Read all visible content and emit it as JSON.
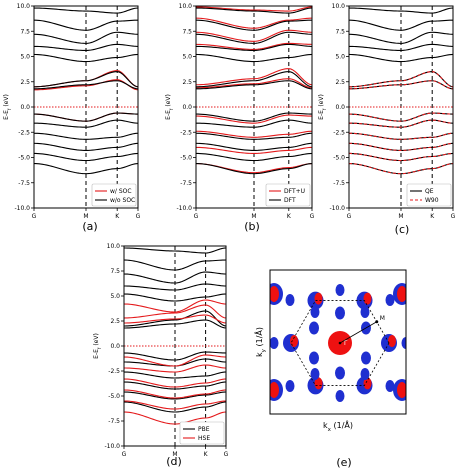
{
  "figure_labels": [
    "(a)",
    "(b)",
    "(c)",
    "(d)",
    "(e)"
  ],
  "colors": {
    "line_primary": "#e41a1c",
    "line_secondary": "#000000",
    "fermi": "#e41a1c",
    "pocket_red": "#ee1111",
    "pocket_blue": "#1f2fd0"
  },
  "chart_data": [
    {
      "id": "a",
      "type": "line",
      "ylabel": "E-E_f (eV)",
      "ylim": [
        -10.0,
        10.0
      ],
      "yticks": [
        "10.0",
        "7.5",
        "5.0",
        "2.5",
        "0.0",
        "-2.5",
        "-5.0",
        "-7.5",
        "-10.0"
      ],
      "xticks": [
        "G",
        "M",
        "K",
        "G"
      ],
      "xtick_pos": [
        0,
        0.5,
        0.8,
        1.0
      ],
      "fermi_level": 0.0,
      "legend": {
        "position": "lower-right",
        "entries": [
          {
            "name": "w/ SOC",
            "color": "#e41a1c",
            "style": "solid"
          },
          {
            "name": "w/o SOC",
            "color": "#000000",
            "style": "solid"
          }
        ]
      },
      "series": [
        {
          "name": "w/ SOC",
          "color": "#e41a1c",
          "style": "solid",
          "band_energies_at_G_M_K_G": [
            [
              2.0,
              2.6,
              3.6,
              2.0
            ],
            [
              1.7,
              2.1,
              2.7,
              1.7
            ],
            [
              -0.7,
              -1.4,
              -0.6,
              -0.7
            ]
          ]
        },
        {
          "name": "w/o SOC",
          "color": "#000000",
          "style": "solid",
          "band_energies_at_G_M_K_G": [
            [
              9.8,
              9.5,
              9.3,
              9.8
            ],
            [
              8.6,
              7.6,
              8.5,
              8.6
            ],
            [
              7.2,
              6.3,
              7.4,
              7.2
            ],
            [
              6.0,
              5.6,
              6.2,
              6.0
            ],
            [
              5.2,
              4.5,
              4.9,
              5.2
            ],
            [
              2.0,
              2.6,
              3.5,
              2.0
            ],
            [
              1.8,
              2.2,
              2.6,
              1.8
            ],
            [
              -0.7,
              -1.4,
              -0.6,
              -0.7
            ],
            [
              -1.6,
              -2.0,
              -1.3,
              -1.6
            ],
            [
              -2.6,
              -3.2,
              -3.0,
              -2.6
            ],
            [
              -3.6,
              -4.3,
              -4.0,
              -3.6
            ],
            [
              -4.6,
              -5.3,
              -4.9,
              -4.6
            ],
            [
              -5.6,
              -6.6,
              -6.1,
              -5.6
            ]
          ]
        }
      ]
    },
    {
      "id": "b",
      "type": "line",
      "ylabel": "E-E_f (eV)",
      "ylim": [
        -10.0,
        10.0
      ],
      "yticks": [
        "10.0",
        "7.5",
        "5.0",
        "2.5",
        "0.0",
        "-2.5",
        "-5.0",
        "-7.5",
        "-10.0"
      ],
      "xticks": [
        "G",
        "M",
        "K",
        "G"
      ],
      "xtick_pos": [
        0,
        0.5,
        0.8,
        1.0
      ],
      "fermi_level": 0.0,
      "legend": {
        "position": "lower-right",
        "entries": [
          {
            "name": "DFT+U",
            "color": "#e41a1c",
            "style": "solid"
          },
          {
            "name": "DFT",
            "color": "#000000",
            "style": "solid"
          }
        ]
      },
      "series": [
        {
          "name": "DFT+U",
          "color": "#e41a1c",
          "style": "solid",
          "band_energies_at_G_M_K_G": [
            [
              9.9,
              9.6,
              9.5,
              9.9
            ],
            [
              8.8,
              7.8,
              8.6,
              8.8
            ],
            [
              7.4,
              6.5,
              7.6,
              7.4
            ],
            [
              6.2,
              5.7,
              6.3,
              6.2
            ],
            [
              2.2,
              2.8,
              3.8,
              2.2
            ],
            [
              1.9,
              2.3,
              2.8,
              1.9
            ],
            [
              -0.9,
              -1.6,
              -0.8,
              -0.9
            ],
            [
              -2.4,
              -3.0,
              -2.7,
              -2.4
            ],
            [
              -4.0,
              -4.6,
              -4.3,
              -4.0
            ],
            [
              -5.6,
              -6.5,
              -6.0,
              -5.6
            ]
          ]
        },
        {
          "name": "DFT",
          "color": "#000000",
          "style": "solid",
          "band_energies_at_G_M_K_G": [
            [
              9.8,
              9.5,
              9.3,
              9.8
            ],
            [
              8.6,
              7.6,
              8.5,
              8.6
            ],
            [
              7.2,
              6.3,
              7.4,
              7.2
            ],
            [
              6.0,
              5.6,
              6.2,
              6.0
            ],
            [
              5.2,
              4.5,
              4.9,
              5.2
            ],
            [
              2.0,
              2.6,
              3.5,
              2.0
            ],
            [
              1.8,
              2.2,
              2.6,
              1.8
            ],
            [
              -0.7,
              -1.4,
              -0.6,
              -0.7
            ],
            [
              -1.6,
              -2.0,
              -1.3,
              -1.6
            ],
            [
              -2.6,
              -3.2,
              -3.0,
              -2.6
            ],
            [
              -3.6,
              -4.3,
              -4.0,
              -3.6
            ],
            [
              -4.6,
              -5.3,
              -4.9,
              -4.6
            ],
            [
              -5.6,
              -6.6,
              -6.1,
              -5.6
            ]
          ]
        }
      ]
    },
    {
      "id": "c",
      "type": "line",
      "ylabel": "E-E_f (eV)",
      "ylim": [
        -10.0,
        10.0
      ],
      "yticks": [
        "10.0",
        "7.5",
        "5.0",
        "2.5",
        "0.0",
        "-2.5",
        "-5.0",
        "-7.5",
        "-10.0"
      ],
      "xticks": [
        "G",
        "M",
        "K",
        "G"
      ],
      "xtick_pos": [
        0,
        0.5,
        0.8,
        1.0
      ],
      "fermi_level": 0.0,
      "legend": {
        "position": "lower-right",
        "entries": [
          {
            "name": "QE",
            "color": "#000000",
            "style": "solid"
          },
          {
            "name": "W90",
            "color": "#e41a1c",
            "style": "dashed"
          }
        ]
      },
      "series": [
        {
          "name": "QE",
          "color": "#000000",
          "style": "solid",
          "band_energies_at_G_M_K_G": [
            [
              9.8,
              9.5,
              9.3,
              9.8
            ],
            [
              8.6,
              7.6,
              8.5,
              8.6
            ],
            [
              7.2,
              6.3,
              7.4,
              7.2
            ],
            [
              6.0,
              5.6,
              6.2,
              6.0
            ],
            [
              5.2,
              4.5,
              4.9,
              5.2
            ],
            [
              2.0,
              2.6,
              3.5,
              2.0
            ],
            [
              1.8,
              2.2,
              2.6,
              1.8
            ],
            [
              -0.7,
              -1.4,
              -0.6,
              -0.7
            ],
            [
              -1.6,
              -2.0,
              -1.3,
              -1.6
            ],
            [
              -2.6,
              -3.2,
              -3.0,
              -2.6
            ],
            [
              -3.6,
              -4.3,
              -4.0,
              -3.6
            ],
            [
              -4.6,
              -5.3,
              -4.9,
              -4.6
            ],
            [
              -5.6,
              -6.6,
              -6.1,
              -5.6
            ]
          ]
        },
        {
          "name": "W90",
          "color": "#e41a1c",
          "style": "dashed",
          "band_energies_at_G_M_K_G": [
            [
              2.0,
              2.6,
              3.5,
              2.0
            ],
            [
              1.8,
              2.2,
              2.6,
              1.8
            ],
            [
              -0.7,
              -1.4,
              -0.6,
              -0.7
            ],
            [
              -1.6,
              -2.0,
              -1.3,
              -1.6
            ],
            [
              -2.6,
              -3.2,
              -3.0,
              -2.6
            ],
            [
              -3.6,
              -4.3,
              -4.0,
              -3.6
            ],
            [
              -4.6,
              -5.3,
              -4.9,
              -4.6
            ],
            [
              -5.6,
              -6.6,
              -6.1,
              -5.6
            ]
          ]
        }
      ]
    },
    {
      "id": "d",
      "type": "line",
      "ylabel": "E-E_f (eV)",
      "ylim": [
        -10.0,
        10.0
      ],
      "yticks": [
        "10.0",
        "7.5",
        "5.0",
        "2.5",
        "0.0",
        "-2.5",
        "-5.0",
        "-7.5",
        "-10.0"
      ],
      "xticks": [
        "G",
        "M",
        "K",
        "G"
      ],
      "xtick_pos": [
        0,
        0.5,
        0.8,
        1.0
      ],
      "fermi_level": 0.0,
      "legend": {
        "position": "lower-right",
        "entries": [
          {
            "name": "PBE",
            "color": "#000000",
            "style": "solid"
          },
          {
            "name": "HSE",
            "color": "#e41a1c",
            "style": "solid"
          }
        ]
      },
      "series": [
        {
          "name": "PBE",
          "color": "#000000",
          "style": "solid",
          "band_energies_at_G_M_K_G": [
            [
              9.8,
              9.5,
              9.3,
              9.8
            ],
            [
              8.6,
              7.6,
              8.5,
              8.6
            ],
            [
              7.2,
              6.3,
              7.4,
              7.2
            ],
            [
              6.0,
              5.6,
              6.2,
              6.0
            ],
            [
              5.2,
              4.5,
              4.9,
              5.2
            ],
            [
              2.0,
              2.6,
              3.5,
              2.0
            ],
            [
              1.8,
              2.2,
              2.6,
              1.8
            ],
            [
              -0.7,
              -1.4,
              -0.6,
              -0.7
            ],
            [
              -1.6,
              -2.0,
              -1.3,
              -1.6
            ],
            [
              -2.6,
              -3.2,
              -3.0,
              -2.6
            ],
            [
              -3.6,
              -4.3,
              -4.0,
              -3.6
            ],
            [
              -4.6,
              -5.3,
              -4.9,
              -4.6
            ],
            [
              -5.6,
              -6.6,
              -6.1,
              -5.6
            ]
          ]
        },
        {
          "name": "HSE",
          "color": "#e41a1c",
          "style": "solid",
          "band_energies_at_G_M_K_G": [
            [
              4.2,
              3.4,
              4.6,
              4.2
            ],
            [
              2.8,
              3.3,
              4.1,
              2.8
            ],
            [
              2.3,
              2.7,
              3.1,
              2.3
            ],
            [
              -1.1,
              -2.0,
              -0.9,
              -1.1
            ],
            [
              -2.2,
              -2.6,
              -1.9,
              -2.2
            ],
            [
              -3.3,
              -4.1,
              -3.7,
              -3.3
            ],
            [
              -4.4,
              -5.2,
              -4.8,
              -4.4
            ],
            [
              -5.5,
              -6.3,
              -5.8,
              -5.5
            ],
            [
              -6.6,
              -7.8,
              -7.2,
              -6.6
            ]
          ]
        }
      ]
    },
    {
      "id": "e",
      "type": "heatmap",
      "xlabel": "k_x (1/Å)",
      "ylabel": "k_y (1/Å)",
      "annotations": [
        "Γ",
        "M"
      ]
    }
  ]
}
